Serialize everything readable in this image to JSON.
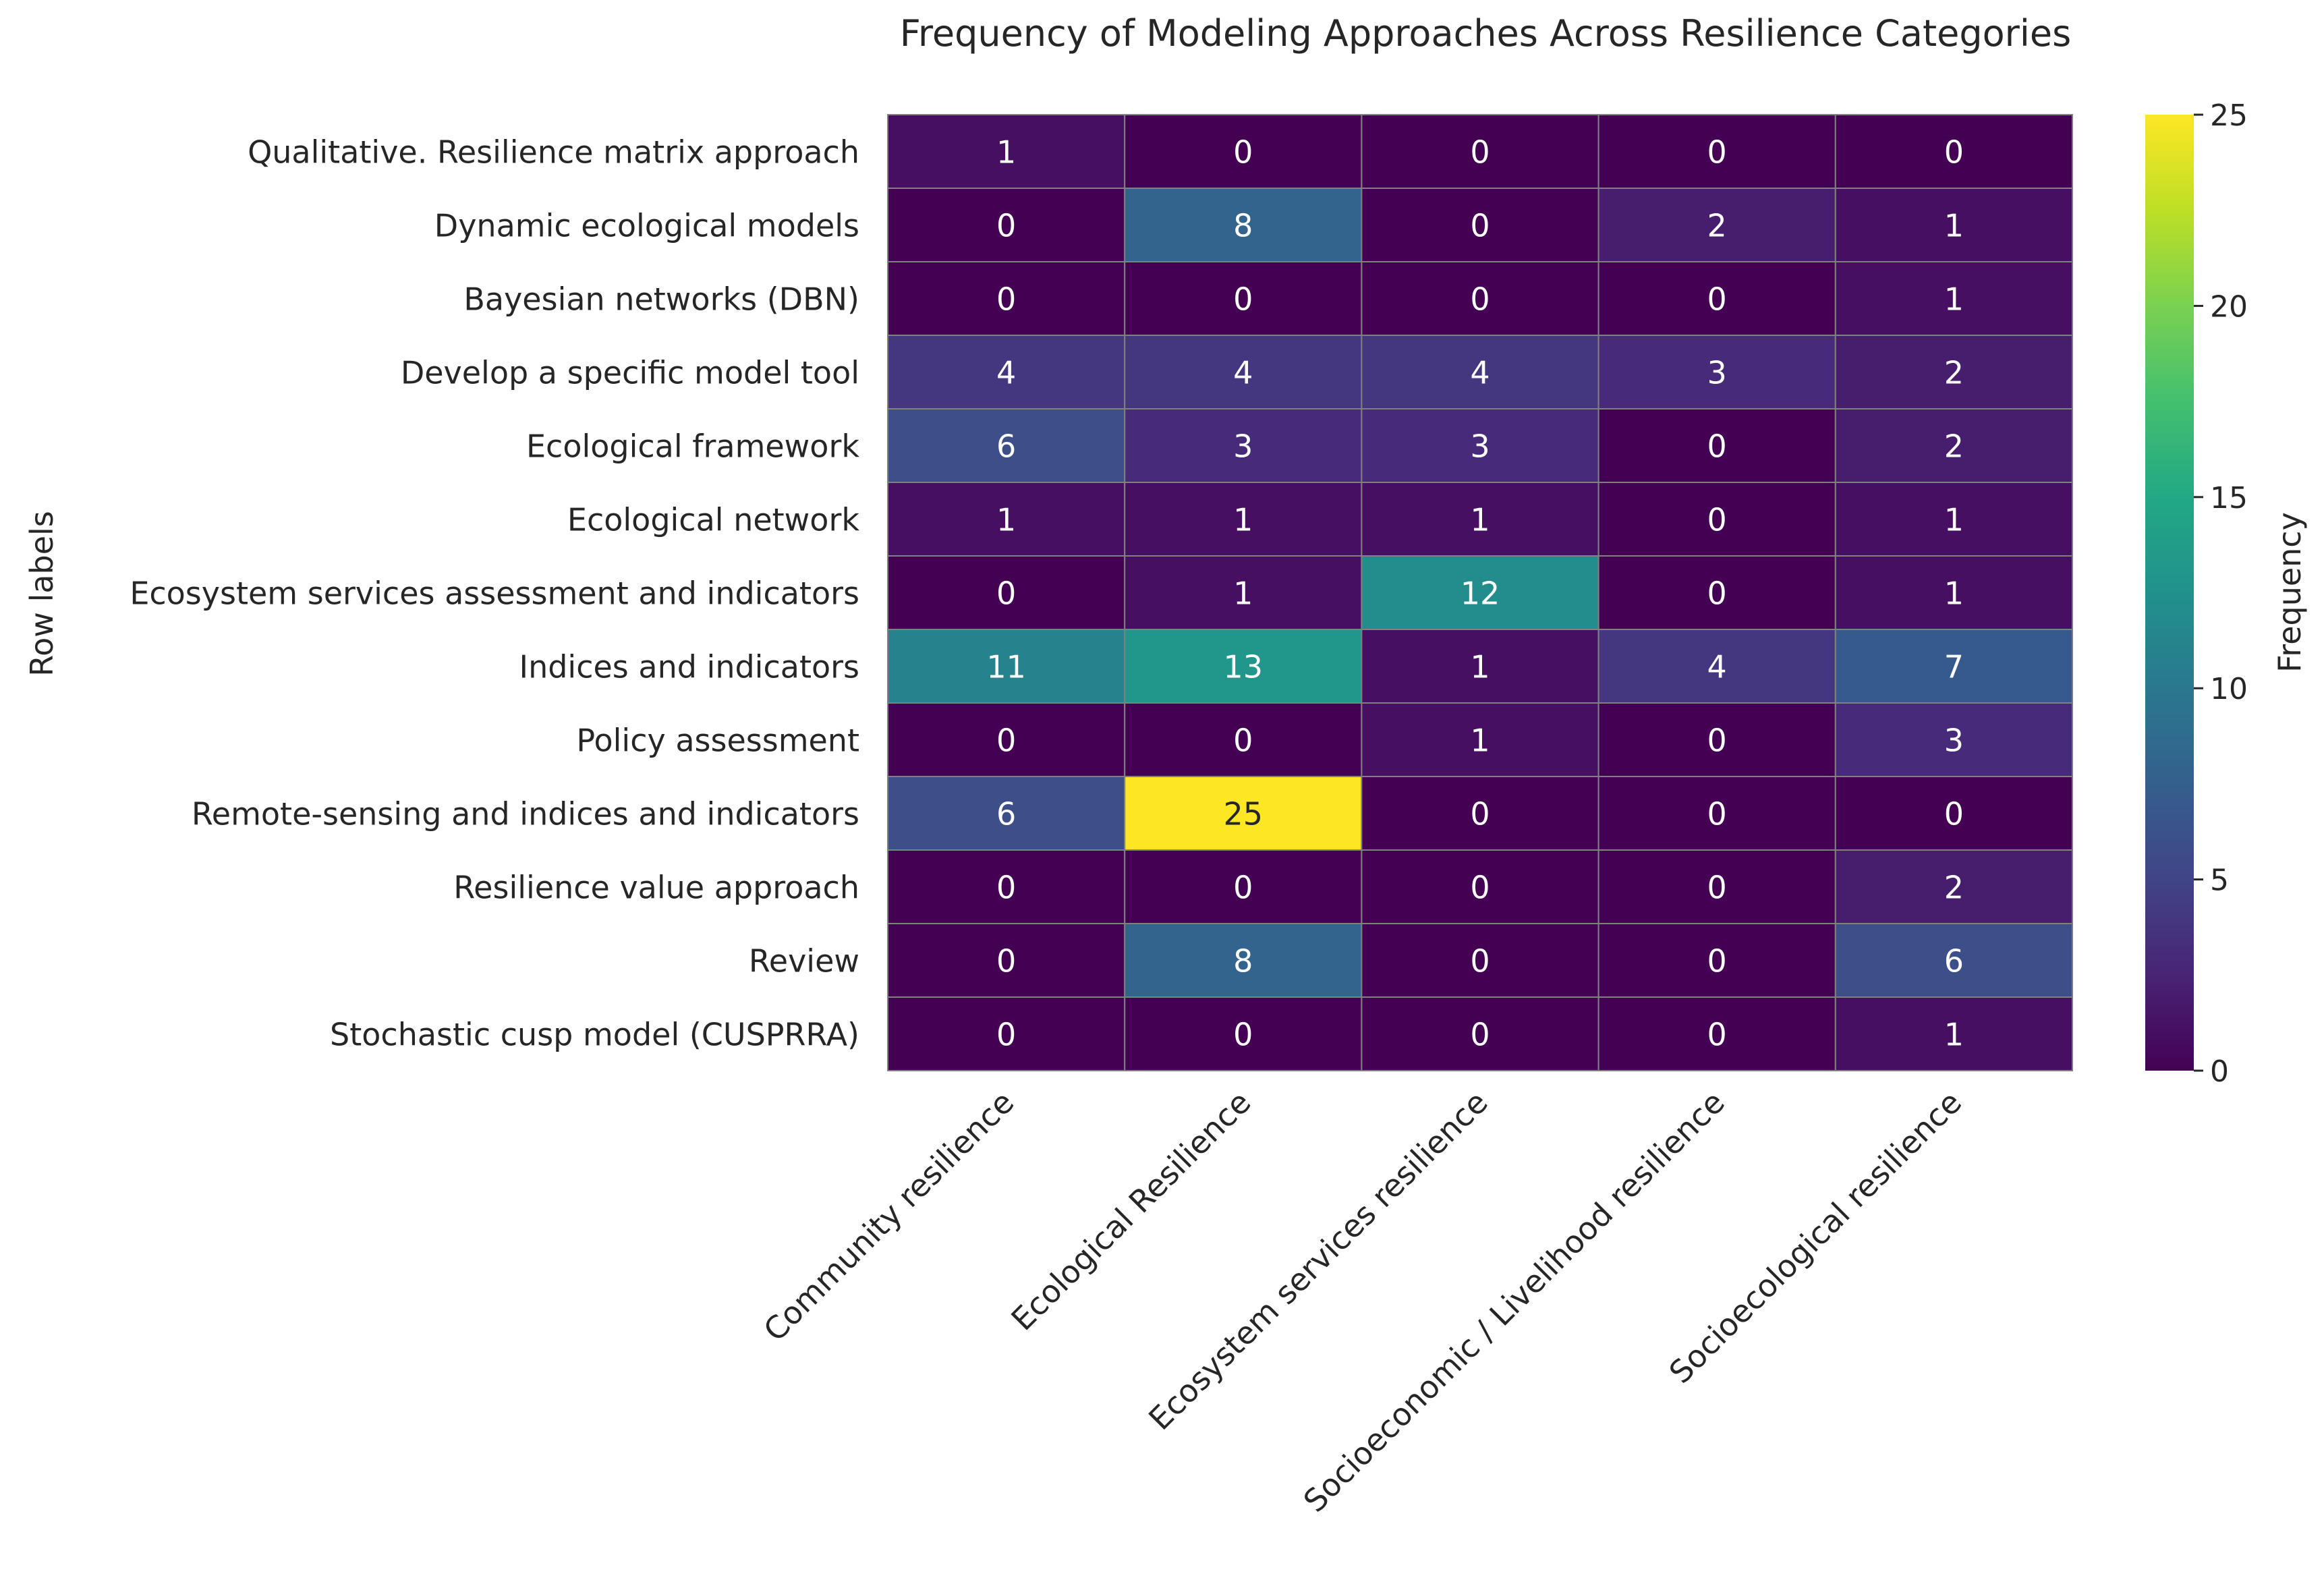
{
  "chart_data": {
    "type": "heatmap",
    "title": "Frequency of Modeling Approaches Across Resilience Categories",
    "ylabel": "Row labels",
    "xlabel": "",
    "colorbar_label": "Frequency",
    "colorbar_range": [
      0,
      25
    ],
    "colorbar_ticks": [
      0,
      5,
      10,
      15,
      20,
      25
    ],
    "colormap": "viridis",
    "rows": [
      "Qualitative. Resilience matrix approach",
      "Dynamic ecological models",
      "Bayesian networks (DBN)",
      "Develop a specific model tool",
      "Ecological framework",
      "Ecological network",
      "Ecosystem services assessment and indicators",
      "Indices and indicators",
      "Policy assessment",
      "Remote-sensing and indices and indicators",
      "Resilience value approach",
      "Review",
      "Stochastic cusp model (CUSPRRA)"
    ],
    "columns": [
      "Community resilience",
      "Ecological Resilience",
      "Ecosystem services resilience",
      "Socioeconomic / Livelihood resilience",
      "Socioecological resilience"
    ],
    "values": [
      [
        1,
        0,
        0,
        0,
        0
      ],
      [
        0,
        8,
        0,
        2,
        1
      ],
      [
        0,
        0,
        0,
        0,
        1
      ],
      [
        4,
        4,
        4,
        3,
        2
      ],
      [
        6,
        3,
        3,
        0,
        2
      ],
      [
        1,
        1,
        1,
        0,
        1
      ],
      [
        0,
        1,
        12,
        0,
        1
      ],
      [
        11,
        13,
        1,
        4,
        7
      ],
      [
        0,
        0,
        1,
        0,
        3
      ],
      [
        6,
        25,
        0,
        0,
        0
      ],
      [
        0,
        0,
        0,
        0,
        2
      ],
      [
        0,
        8,
        0,
        0,
        6
      ],
      [
        0,
        0,
        0,
        0,
        1
      ]
    ]
  }
}
